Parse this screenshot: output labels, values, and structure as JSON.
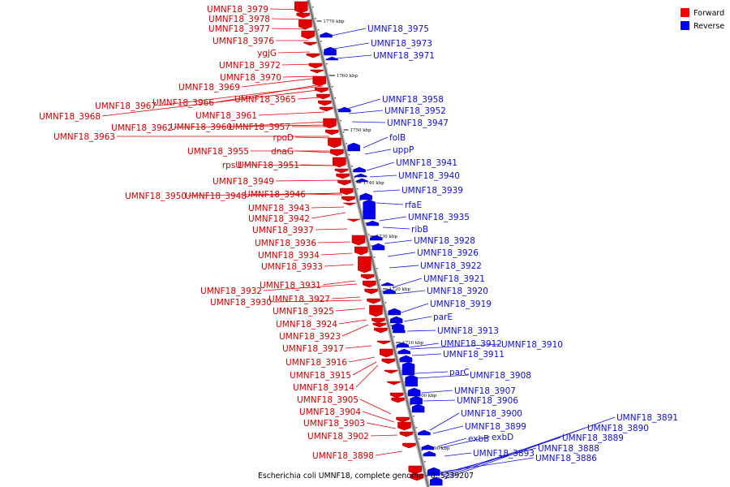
{
  "caption": "Escherichia coli UMNF18, complete genome - 0..5239207",
  "legend": [
    {
      "label": "Forward",
      "color": "#ff0000"
    },
    {
      "label": "Reverse",
      "color": "#0000ff"
    }
  ],
  "ticks": [
    "1770 kbp",
    "1760 kbp",
    "1750 kbp",
    "1740 kbp",
    "1730 kbp",
    "1720 kbp",
    "1710 kbp",
    "1700 kbp",
    "1690 kbp"
  ],
  "forward_labels": [
    "UMNF18_3979",
    "UMNF18_3978",
    "UMNF18_3977",
    "UMNF18_3976",
    "ygjG",
    "UMNF18_3972",
    "UMNF18_3970",
    "UMNF18_3969",
    "UMNF18_3965",
    "UMNF18_3966",
    "UMNF18_3967",
    "UMNF18_3961",
    "UMNF18_3968",
    "UMNF18_3962",
    "UMNF18_3960",
    "UMNF18_3957",
    "UMNF18_3963",
    "rpoD",
    "UMNF18_3955",
    "dnaG",
    "rpsU",
    "UMNF18_3951",
    "UMNF18_3949",
    "UMNF18_3950",
    "UMNF18_3948",
    "UMNF18_3946",
    "UMNF18_3943",
    "UMNF18_3942",
    "UMNF18_3937",
    "UMNF18_3936",
    "UMNF18_3934",
    "UMNF18_3933",
    "UMNF18_3931",
    "UMNF18_3932",
    "UMNF18_3927",
    "UMNF18_3930",
    "UMNF18_3925",
    "UMNF18_3924",
    "UMNF18_3923",
    "UMNF18_3917",
    "UMNF18_3916",
    "UMNF18_3915",
    "UMNF18_3914",
    "UMNF18_3905",
    "UMNF18_3904",
    "UMNF18_3903",
    "UMNF18_3902",
    "UMNF18_3898"
  ],
  "reverse_labels": [
    "UMNF18_3975",
    "UMNF18_3973",
    "UMNF18_3971",
    "UMNF18_3958",
    "UMNF18_3952",
    "UMNF18_3947",
    "folB",
    "uppP",
    "UMNF18_3941",
    "UMNF18_3940",
    "UMNF18_3939",
    "rfaE",
    "UMNF18_3935",
    "ribB",
    "UMNF18_3928",
    "UMNF18_3926",
    "UMNF18_3922",
    "UMNF18_3921",
    "UMNF18_3920",
    "UMNF18_3919",
    "parE",
    "UMNF18_3913",
    "UMNF18_3912",
    "UMNF18_3910",
    "UMNF18_3911",
    "parC",
    "UMNF18_3908",
    "UMNF18_3907",
    "UMNF18_3906",
    "UMNF18_3900",
    "UMNF18_3899",
    "exbB",
    "exbD",
    "UMNF18_3893",
    "UMNF18_3891",
    "UMNF18_3890",
    "UMNF18_3889",
    "UMNF18_3888",
    "UMNF18_3886"
  ]
}
